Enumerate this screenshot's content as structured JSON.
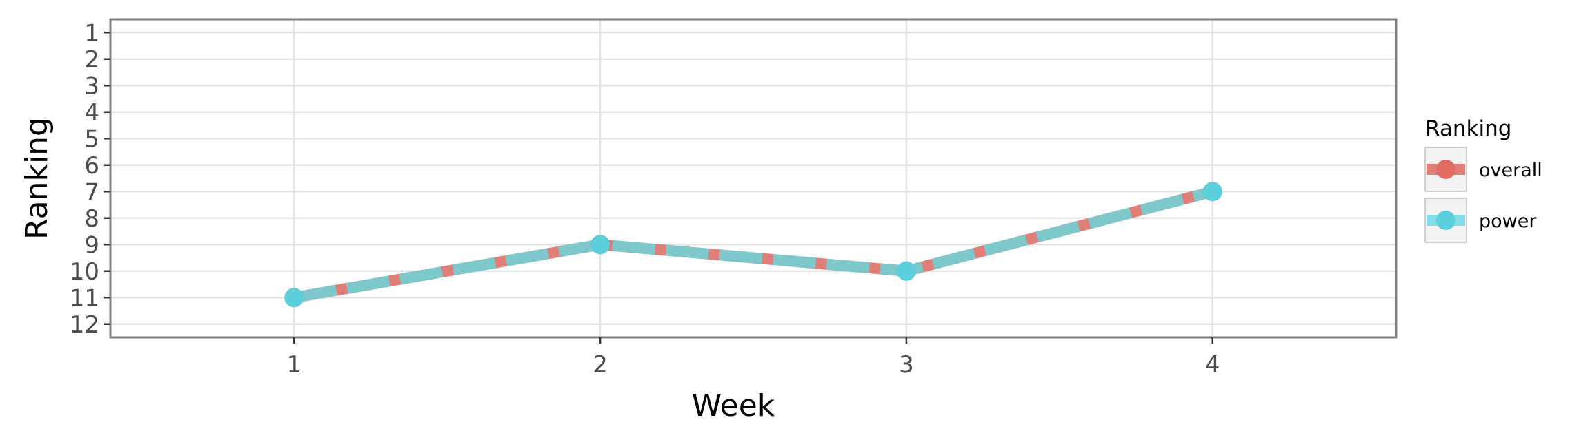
{
  "chart_data": {
    "type": "line",
    "xlabel": "Week",
    "ylabel": "Ranking",
    "x": [
      1,
      2,
      3,
      4
    ],
    "x_ticks": [
      "1",
      "2",
      "3",
      "4"
    ],
    "xlim": [
      0.4,
      4.6
    ],
    "ylim": [
      12.5,
      0.5
    ],
    "y_reversed": true,
    "y_ticks": [
      "1",
      "2",
      "3",
      "4",
      "5",
      "6",
      "7",
      "8",
      "9",
      "10",
      "11",
      "12"
    ],
    "grid": true,
    "legend": {
      "title": "Ranking",
      "placement": "right"
    },
    "series": [
      {
        "name": "overall",
        "values": [
          11,
          9,
          10,
          7
        ],
        "color": "#e06c64",
        "style": "solid"
      },
      {
        "name": "power",
        "values": [
          11,
          9,
          10,
          7
        ],
        "color": "#5bcfdb",
        "style": "dashed"
      }
    ]
  }
}
